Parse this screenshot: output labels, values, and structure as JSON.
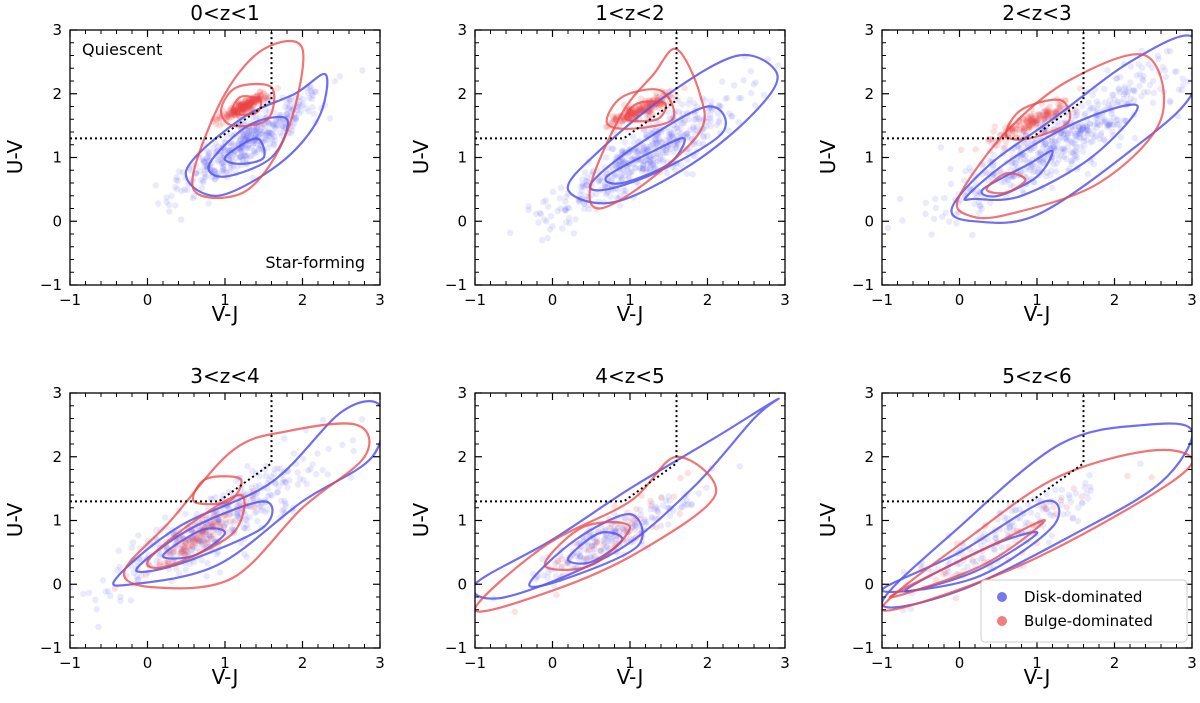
{
  "chart_data": {
    "type": "scatter",
    "xlabel": "V-J",
    "ylabel": "U-V",
    "xlim": [
      -1,
      3
    ],
    "ylim": [
      -1,
      3
    ],
    "xticks": [
      -1,
      0,
      1,
      2,
      3
    ],
    "yticks": [
      -1,
      0,
      1,
      2,
      3
    ],
    "colors": {
      "disk": "#5555ee",
      "bulge": "#ee4444"
    },
    "quiescent_boundary": {
      "uv_min": 1.3,
      "vj_max": 1.6,
      "slope": 0.88,
      "intercept": 0.49,
      "vj_at_corner": 0.92
    },
    "annotations": {
      "quiescent": "Quiescent",
      "star_forming": "Star-forming"
    },
    "legend": {
      "placement": "lower-right",
      "entries": [
        {
          "label": "Disk-dominated",
          "color": "#5555ee"
        },
        {
          "label": "Bulge-dominated",
          "color": "#ee4444"
        }
      ]
    },
    "panels": [
      {
        "title": "0<z<1",
        "disk": {
          "center": [
            1.3,
            1.25
          ],
          "spread": [
            0.45,
            0.35
          ],
          "points": 420
        },
        "bulge": {
          "center": [
            1.25,
            1.8
          ],
          "spread": [
            0.15,
            0.1
          ],
          "points": 220
        },
        "disk_contours": [
          [
            [
              0.5,
              0.8
            ],
            [
              1.2,
              1.6
            ],
            [
              1.9,
              2.0
            ],
            [
              2.3,
              2.3
            ],
            [
              2.2,
              1.6
            ],
            [
              1.7,
              0.9
            ],
            [
              0.9,
              0.4
            ]
          ],
          [
            [
              0.8,
              0.9
            ],
            [
              1.3,
              1.5
            ],
            [
              1.8,
              1.6
            ],
            [
              1.6,
              1.0
            ],
            [
              1.0,
              0.7
            ]
          ],
          [
            [
              1.0,
              1.0
            ],
            [
              1.4,
              1.3
            ],
            [
              1.5,
              1.0
            ],
            [
              1.2,
              0.9
            ]
          ]
        ],
        "bulge_contours": [
          [
            [
              0.6,
              0.8
            ],
            [
              1.0,
              2.0
            ],
            [
              1.5,
              2.7
            ],
            [
              2.0,
              2.7
            ],
            [
              1.8,
              1.4
            ],
            [
              1.3,
              0.5
            ],
            [
              0.7,
              0.4
            ]
          ],
          [
            [
              0.95,
              1.75
            ],
            [
              1.15,
              2.1
            ],
            [
              1.6,
              2.1
            ],
            [
              1.55,
              1.6
            ],
            [
              1.1,
              1.5
            ]
          ],
          [
            [
              1.1,
              1.7
            ],
            [
              1.2,
              1.95
            ],
            [
              1.45,
              1.9
            ],
            [
              1.4,
              1.7
            ]
          ]
        ]
      },
      {
        "title": "1<z<2",
        "disk": {
          "center": [
            1.2,
            1.05
          ],
          "spread": [
            0.6,
            0.45
          ],
          "points": 480
        },
        "bulge": {
          "center": [
            1.15,
            1.75
          ],
          "spread": [
            0.22,
            0.12
          ],
          "points": 200
        },
        "disk_contours": [
          [
            [
              0.2,
              0.5
            ],
            [
              0.6,
              1.1
            ],
            [
              1.5,
              2.0
            ],
            [
              2.4,
              2.6
            ],
            [
              2.9,
              2.3
            ],
            [
              2.6,
              1.7
            ],
            [
              1.8,
              0.9
            ],
            [
              0.8,
              0.3
            ]
          ],
          [
            [
              0.5,
              0.6
            ],
            [
              1.1,
              1.2
            ],
            [
              2.0,
              1.8
            ],
            [
              2.2,
              1.4
            ],
            [
              1.4,
              0.8
            ],
            [
              0.7,
              0.5
            ]
          ],
          [
            [
              0.7,
              0.7
            ],
            [
              1.3,
              1.1
            ],
            [
              1.7,
              1.3
            ],
            [
              1.5,
              0.9
            ],
            [
              0.9,
              0.6
            ]
          ]
        ],
        "bulge_contours": [
          [
            [
              0.5,
              0.6
            ],
            [
              0.9,
              1.7
            ],
            [
              1.3,
              2.3
            ],
            [
              1.6,
              2.7
            ],
            [
              1.9,
              2.0
            ],
            [
              1.9,
              1.4
            ],
            [
              1.2,
              0.6
            ],
            [
              0.6,
              0.2
            ]
          ],
          [
            [
              0.7,
              1.55
            ],
            [
              0.9,
              1.95
            ],
            [
              1.4,
              2.05
            ],
            [
              1.55,
              1.6
            ],
            [
              1.0,
              1.45
            ]
          ],
          [
            [
              0.95,
              1.6
            ],
            [
              1.1,
              1.85
            ],
            [
              1.45,
              1.85
            ],
            [
              1.35,
              1.6
            ]
          ]
        ]
      },
      {
        "title": "2<z<3",
        "disk": {
          "center": [
            1.35,
            1.3
          ],
          "spread": [
            0.75,
            0.55
          ],
          "points": 520
        },
        "bulge": {
          "center": [
            0.9,
            1.55
          ],
          "spread": [
            0.25,
            0.15
          ],
          "points": 160
        },
        "disk_contours": [
          [
            [
              -0.1,
              0.2
            ],
            [
              0.4,
              0.9
            ],
            [
              1.2,
              1.6
            ],
            [
              2.2,
              2.5
            ],
            [
              3.0,
              2.9
            ],
            [
              3.0,
              2.0
            ],
            [
              2.2,
              1.1
            ],
            [
              1.0,
              0.1
            ],
            [
              0.2,
              0.0
            ]
          ],
          [
            [
              0.1,
              0.4
            ],
            [
              0.7,
              1.0
            ],
            [
              1.6,
              1.6
            ],
            [
              2.3,
              1.8
            ],
            [
              1.7,
              1.0
            ],
            [
              0.8,
              0.4
            ],
            [
              0.2,
              0.35
            ]
          ],
          [
            [
              0.3,
              0.5
            ],
            [
              0.9,
              0.9
            ],
            [
              1.2,
              1.1
            ],
            [
              1.0,
              0.7
            ],
            [
              0.5,
              0.4
            ]
          ]
        ],
        "bulge_contours": [
          [
            [
              0.0,
              0.4
            ],
            [
              0.6,
              1.4
            ],
            [
              1.4,
              2.2
            ],
            [
              2.4,
              2.6
            ],
            [
              2.6,
              1.6
            ],
            [
              1.8,
              0.6
            ],
            [
              0.6,
              0.1
            ],
            [
              0.1,
              0.1
            ]
          ],
          [
            [
              0.6,
              1.35
            ],
            [
              0.8,
              1.75
            ],
            [
              1.3,
              1.9
            ],
            [
              1.4,
              1.55
            ],
            [
              0.9,
              1.3
            ]
          ],
          [
            [
              0.35,
              0.5
            ],
            [
              0.6,
              0.75
            ],
            [
              0.85,
              0.65
            ],
            [
              0.6,
              0.45
            ]
          ]
        ]
      },
      {
        "title": "3<z<4",
        "disk": {
          "center": [
            0.9,
            0.95
          ],
          "spread": [
            0.7,
            0.5
          ],
          "points": 380
        },
        "bulge": {
          "center": [
            0.75,
            0.8
          ],
          "spread": [
            0.3,
            0.25
          ],
          "points": 120
        },
        "disk_contours": [
          [
            [
              -0.4,
              0.1
            ],
            [
              0.4,
              0.9
            ],
            [
              1.6,
              1.6
            ],
            [
              2.5,
              2.7
            ],
            [
              3.0,
              2.8
            ],
            [
              2.9,
              2.0
            ],
            [
              2.0,
              1.3
            ],
            [
              0.9,
              0.3
            ],
            [
              -0.2,
              0.0
            ]
          ],
          [
            [
              -0.1,
              0.3
            ],
            [
              0.6,
              0.9
            ],
            [
              1.5,
              1.3
            ],
            [
              1.5,
              0.9
            ],
            [
              0.6,
              0.4
            ],
            [
              0.0,
              0.2
            ]
          ],
          [
            [
              0.2,
              0.45
            ],
            [
              0.7,
              0.85
            ],
            [
              1.0,
              0.8
            ],
            [
              0.6,
              0.45
            ]
          ]
        ],
        "bulge_contours": [
          [
            [
              -0.3,
              0.2
            ],
            [
              0.3,
              1.0
            ],
            [
              1.1,
              2.1
            ],
            [
              1.8,
              2.4
            ],
            [
              2.7,
              2.5
            ],
            [
              2.8,
              2.0
            ],
            [
              2.0,
              1.2
            ],
            [
              1.1,
              0.1
            ],
            [
              0.1,
              -0.05
            ]
          ],
          [
            [
              0.0,
              0.35
            ],
            [
              0.5,
              0.9
            ],
            [
              1.2,
              1.4
            ],
            [
              1.1,
              0.8
            ],
            [
              0.3,
              0.3
            ]
          ],
          [
            [
              0.6,
              1.3
            ],
            [
              0.75,
              1.65
            ],
            [
              1.2,
              1.65
            ],
            [
              1.05,
              1.3
            ]
          ]
        ]
      },
      {
        "title": "4<z<5",
        "disk": {
          "center": [
            0.75,
            0.7
          ],
          "spread": [
            0.5,
            0.3
          ],
          "points": 200
        },
        "bulge": {
          "center": [
            0.8,
            0.8
          ],
          "spread": [
            0.5,
            0.4
          ],
          "points": 60
        },
        "disk_contours": [
          [
            [
              -1.0,
              0.0
            ],
            [
              0.0,
              0.7
            ],
            [
              1.0,
              1.5
            ],
            [
              2.1,
              2.3
            ],
            [
              2.9,
              2.9
            ],
            [
              2.6,
              2.6
            ],
            [
              1.8,
              1.5
            ],
            [
              0.8,
              0.5
            ],
            [
              -0.6,
              -0.2
            ]
          ],
          [
            [
              -0.3,
              0.0
            ],
            [
              0.3,
              0.7
            ],
            [
              1.0,
              1.1
            ],
            [
              1.1,
              0.6
            ],
            [
              0.2,
              0.1
            ]
          ],
          [
            [
              0.2,
              0.4
            ],
            [
              0.6,
              0.8
            ],
            [
              0.9,
              0.7
            ],
            [
              0.5,
              0.35
            ]
          ]
        ],
        "bulge_contours": [
          [
            [
              -1.0,
              -0.4
            ],
            [
              -0.1,
              0.6
            ],
            [
              1.0,
              1.3
            ],
            [
              1.6,
              2.0
            ],
            [
              2.1,
              1.4
            ],
            [
              1.1,
              0.5
            ],
            [
              0.0,
              -0.1
            ]
          ],
          [
            [
              -0.1,
              0.3
            ],
            [
              0.4,
              0.9
            ],
            [
              1.0,
              0.9
            ],
            [
              0.5,
              0.3
            ]
          ]
        ]
      },
      {
        "title": "5<z<6",
        "disk": {
          "center": [
            0.6,
            0.8
          ],
          "spread": [
            0.6,
            0.4
          ],
          "points": 150
        },
        "bulge": {
          "center": [
            0.7,
            0.8
          ],
          "spread": [
            0.6,
            0.4
          ],
          "points": 40
        },
        "disk_contours": [
          [
            [
              -1.0,
              -0.3
            ],
            [
              0.0,
              0.9
            ],
            [
              1.3,
              2.2
            ],
            [
              2.4,
              2.5
            ],
            [
              3.0,
              2.4
            ],
            [
              2.6,
              1.6
            ],
            [
              1.5,
              0.8
            ],
            [
              0.0,
              -0.1
            ]
          ],
          [
            [
              -1.0,
              -0.1
            ],
            [
              0.0,
              0.5
            ],
            [
              1.1,
              1.3
            ],
            [
              1.2,
              0.9
            ],
            [
              0.2,
              0.1
            ]
          ],
          [
            [
              -0.7,
              -0.1
            ],
            [
              0.4,
              0.6
            ],
            [
              1.0,
              0.8
            ],
            [
              0.2,
              0.2
            ]
          ]
        ],
        "bulge_contours": [
          [
            [
              -1.0,
              -0.4
            ],
            [
              0.2,
              0.8
            ],
            [
              1.3,
              1.7
            ],
            [
              2.5,
              2.1
            ],
            [
              3.0,
              1.9
            ],
            [
              2.2,
              1.2
            ],
            [
              0.6,
              0.2
            ]
          ],
          [
            [
              -0.9,
              -0.2
            ],
            [
              0.4,
              0.6
            ],
            [
              1.1,
              1.0
            ],
            [
              0.3,
              0.3
            ]
          ]
        ]
      }
    ]
  }
}
